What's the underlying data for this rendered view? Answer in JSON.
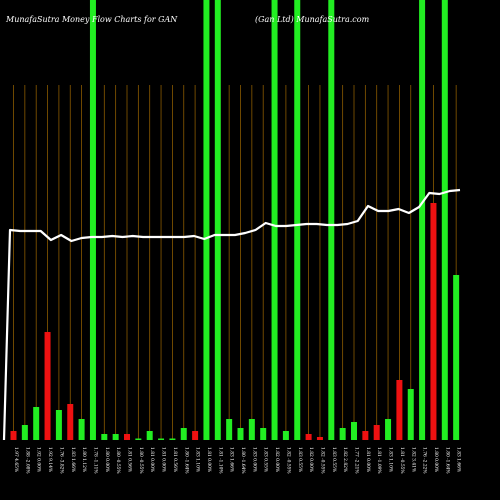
{
  "header": {
    "title_left": "MunafaSutra  Money Flow  Charts for GAN",
    "title_right": "(Gan Ltd) MunafaSutra.com"
  },
  "colors": {
    "background": "#000000",
    "up": "#22ee22",
    "down": "#ee1111",
    "grid": "#8a5a00",
    "line": "#ffffff",
    "text": "#ffffff"
  },
  "chart_data": {
    "type": "bar",
    "title": "",
    "xlabel": "",
    "ylabel": "",
    "grid": true,
    "ylim": [
      0,
      100
    ],
    "bars": [
      {
        "label": "1.97 4.65%",
        "value": 3,
        "color": "red",
        "full": false
      },
      {
        "label": "1.88 -2.08%",
        "value": 5,
        "color": "green",
        "full": false
      },
      {
        "label": "1.92 0.00%",
        "value": 11,
        "color": "green",
        "full": false
      },
      {
        "label": "1.92 9.14%",
        "value": 36,
        "color": "red",
        "full": false
      },
      {
        "label": "1.76 -3.82%",
        "value": 10,
        "color": "green",
        "full": false
      },
      {
        "label": "1.83 1.66%",
        "value": 12,
        "color": "red",
        "full": false
      },
      {
        "label": "1.80 1.12%",
        "value": 7,
        "color": "green",
        "full": false
      },
      {
        "label": "1.78 -1.11%",
        "value": 100,
        "color": "green",
        "full": true
      },
      {
        "label": "1.80 0.00%",
        "value": 2,
        "color": "green",
        "full": false
      },
      {
        "label": "1.80 -0.55%",
        "value": 2,
        "color": "green",
        "full": false
      },
      {
        "label": "1.81 0.56%",
        "value": 2,
        "color": "red",
        "full": false
      },
      {
        "label": "1.80 -0.55%",
        "value": 0.5,
        "color": "green",
        "full": false
      },
      {
        "label": "1.81 0.00%",
        "value": 3,
        "color": "green",
        "full": false
      },
      {
        "label": "1.81 0.00%",
        "value": 0.5,
        "color": "green",
        "full": false
      },
      {
        "label": "1.81 0.56%",
        "value": 0.5,
        "color": "green",
        "full": false
      },
      {
        "label": "1.80 -1.64%",
        "value": 4,
        "color": "green",
        "full": false
      },
      {
        "label": "1.83 1.10%",
        "value": 3,
        "color": "red",
        "full": false
      },
      {
        "label": "1.81 0.00%",
        "value": 100,
        "color": "green",
        "full": true
      },
      {
        "label": "1.81 -1.10%",
        "value": 100,
        "color": "green",
        "full": true
      },
      {
        "label": "1.83 1.66%",
        "value": 7,
        "color": "green",
        "full": false
      },
      {
        "label": "1.80 -1.64%",
        "value": 4,
        "color": "green",
        "full": false
      },
      {
        "label": "1.83 0.00%",
        "value": 7,
        "color": "green",
        "full": false
      },
      {
        "label": "1.83 0.55%",
        "value": 4,
        "color": "green",
        "full": false
      },
      {
        "label": "1.82 0.00%",
        "value": 100,
        "color": "green",
        "full": true
      },
      {
        "label": "1.82 -0.55%",
        "value": 3,
        "color": "green",
        "full": false
      },
      {
        "label": "1.83 0.55%",
        "value": 100,
        "color": "green",
        "full": true
      },
      {
        "label": "1.82 0.00%",
        "value": 2,
        "color": "red",
        "full": false
      },
      {
        "label": "1.82 -0.55%",
        "value": 1,
        "color": "red",
        "full": false
      },
      {
        "label": "1.83 0.55%",
        "value": 100,
        "color": "green",
        "full": true
      },
      {
        "label": "1.82 2.82%",
        "value": 4,
        "color": "green",
        "full": false
      },
      {
        "label": "1.77 -2.21%",
        "value": 6,
        "color": "green",
        "full": false
      },
      {
        "label": "1.81 0.00%",
        "value": 3,
        "color": "red",
        "full": false
      },
      {
        "label": "1.81 -1.09%",
        "value": 5,
        "color": "red",
        "full": false
      },
      {
        "label": "1.83 1.10%",
        "value": 7,
        "color": "green",
        "full": false
      },
      {
        "label": "1.81 -0.55%",
        "value": 20,
        "color": "red",
        "full": false
      },
      {
        "label": "1.82 3.41%",
        "value": 17,
        "color": "green",
        "full": false
      },
      {
        "label": "1.76 -2.22%",
        "value": 100,
        "color": "green",
        "full": true
      },
      {
        "label": "1.80 0.00%",
        "value": 79,
        "color": "red",
        "full": false
      },
      {
        "label": "1.80 -1.64%",
        "value": 100,
        "color": "green",
        "full": true
      },
      {
        "label": "1.83 1.66%",
        "value": 55,
        "color": "green",
        "full": false
      }
    ],
    "price_line": [
      230,
      231,
      231,
      231,
      240,
      235,
      241,
      238,
      237,
      237,
      236,
      237,
      236,
      237,
      237,
      237,
      237,
      237,
      236,
      239,
      235,
      235,
      235,
      233,
      230,
      223,
      226,
      226,
      225,
      224,
      224,
      225,
      225,
      224,
      221,
      206,
      211,
      211,
      209,
      213,
      207,
      193,
      194,
      191,
      190
    ]
  }
}
